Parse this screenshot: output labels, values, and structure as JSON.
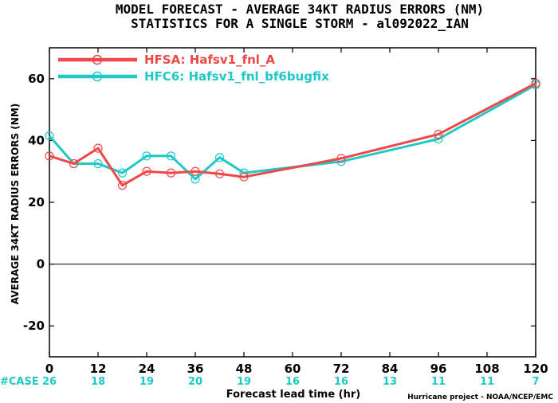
{
  "chart_data": {
    "type": "line",
    "title_lines": [
      "MODEL FORECAST - AVERAGE 34KT RADIUS ERRORS (NM)",
      "STATISTICS FOR A SINGLE STORM - al092022_IAN"
    ],
    "xlabel": "Forecast lead time (hr)",
    "ylabel": "AVERAGE 34KT RADIUS ERRORS (NM)",
    "xlim": [
      0,
      120
    ],
    "ylim": [
      -30,
      70
    ],
    "x_ticks": [
      "0",
      "12",
      "24",
      "36",
      "48",
      "60",
      "72",
      "84",
      "96",
      "108",
      "120"
    ],
    "y_ticks": [
      "-20",
      "0",
      "20",
      "40",
      "60"
    ],
    "zero_line": true,
    "legend_position": "top-left",
    "series": [
      {
        "name": "HFSA: Hafsv1_fnl_A",
        "color": "#f04848",
        "x": [
          0,
          6,
          12,
          18,
          24,
          30,
          36,
          42,
          48,
          72,
          96,
          120
        ],
        "y": [
          35,
          32.5,
          37.5,
          25.5,
          30,
          29.5,
          30,
          29.2,
          28.2,
          34.2,
          42,
          58.5
        ]
      },
      {
        "name": "HFC6: Hafsv1_fnl_bf6bugfix",
        "color": "#20c8c8",
        "x": [
          0,
          6,
          12,
          18,
          24,
          30,
          36,
          42,
          48,
          72,
          96,
          120
        ],
        "y": [
          41.5,
          32.5,
          32.5,
          29.5,
          35,
          35,
          27.5,
          34.5,
          29.5,
          33.2,
          40.5,
          58
        ]
      }
    ],
    "case_label": "#CASE",
    "case_counts": [
      {
        "x": 0,
        "label": "26"
      },
      {
        "x": 12,
        "label": "18"
      },
      {
        "x": 24,
        "label": "19"
      },
      {
        "x": 36,
        "label": "20"
      },
      {
        "x": 48,
        "label": "19"
      },
      {
        "x": 60,
        "label": "16"
      },
      {
        "x": 72,
        "label": "16"
      },
      {
        "x": 84,
        "label": "13"
      },
      {
        "x": 96,
        "label": "11"
      },
      {
        "x": 108,
        "label": "11"
      },
      {
        "x": 120,
        "label": "7"
      }
    ],
    "case_color": "#20c8c8",
    "case_label_color": "#20c8c8",
    "credit": "Hurricane project - NOAA/NCEP/EMC"
  }
}
